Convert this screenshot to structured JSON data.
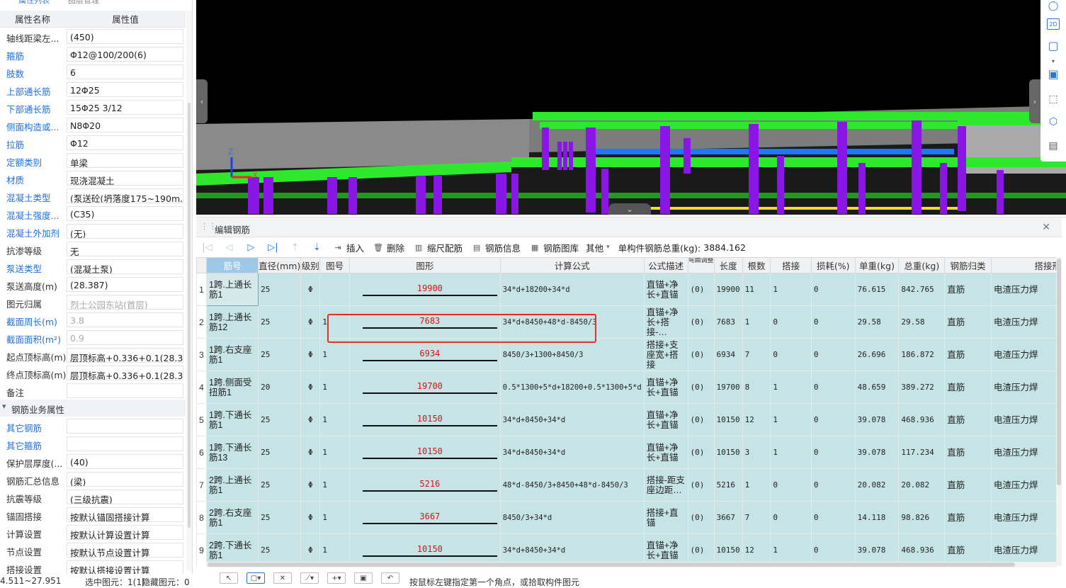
{
  "left_panel": {
    "tabs": [
      "属性列表",
      "图层管理"
    ],
    "header": {
      "name": "属性名称",
      "value": "属性值"
    },
    "rows": [
      {
        "name": "轴线距梁左...",
        "value": "(450)",
        "link": false
      },
      {
        "name": "箍筋",
        "value": "Φ12@100/200(6)",
        "link": true
      },
      {
        "name": "肢数",
        "value": "6",
        "link": true
      },
      {
        "name": "上部通长筋",
        "value": "12Φ25",
        "link": true
      },
      {
        "name": "下部通长筋",
        "value": "15Φ25 3/12",
        "link": true
      },
      {
        "name": "侧面构造或...",
        "value": "N8Φ20",
        "link": true
      },
      {
        "name": "拉筋",
        "value": "Φ12",
        "link": true
      },
      {
        "name": "定额类别",
        "value": "单梁",
        "link": true
      },
      {
        "name": "材质",
        "value": "现浇混凝土",
        "link": true
      },
      {
        "name": "混凝土类型",
        "value": "(泵送砼(坍落度175~190m...",
        "link": true
      },
      {
        "name": "混凝土强度...",
        "value": "(C35)",
        "link": true
      },
      {
        "name": "混凝土外加剂",
        "value": "(无)",
        "link": true
      },
      {
        "name": "抗渗等级",
        "value": "无",
        "link": false
      },
      {
        "name": "泵送类型",
        "value": "(混凝土泵)",
        "link": true
      },
      {
        "name": "泵送高度(m)",
        "value": "(28.387)",
        "link": false
      },
      {
        "name": "图元归属",
        "value": "烈士公园东站(首层)",
        "link": false,
        "gray": true
      },
      {
        "name": "截面周长(m)",
        "value": "3.8",
        "link": true,
        "gray": true
      },
      {
        "name": "截面面积(m²)",
        "value": "0.9",
        "link": true,
        "gray": true
      },
      {
        "name": "起点顶标高(m)",
        "value": "层顶标高+0.336+0.1(28.3...",
        "link": false
      },
      {
        "name": "终点顶标高(m)",
        "value": "层顶标高+0.336+0.1(28.3...",
        "link": false
      },
      {
        "name": "备注",
        "value": "",
        "link": false
      }
    ],
    "group": "钢筋业务属性",
    "rows2": [
      {
        "name": "其它钢筋",
        "value": "",
        "link": true
      },
      {
        "name": "其它箍筋",
        "value": "",
        "link": true
      },
      {
        "name": "保护层厚度(...",
        "value": "(40)",
        "link": false
      },
      {
        "name": "钢筋汇总信息",
        "value": "(梁)",
        "link": false
      },
      {
        "name": "抗震等级",
        "value": "(三级抗震)",
        "link": false
      },
      {
        "name": "锚固搭接",
        "value": "按默认锚固搭接计算",
        "link": false
      },
      {
        "name": "计算设置",
        "value": "按默认计算设置计算",
        "link": false
      },
      {
        "name": "节点设置",
        "value": "按默认节点设置计算",
        "link": false
      },
      {
        "name": "搭接设置",
        "value": "按默认搭接设置计算",
        "link": false
      }
    ]
  },
  "viewport": {
    "axis_z": "Z",
    "axis_x": "X",
    "tools": [
      "sphere-icon",
      "2d-view-icon",
      "cube-icon",
      "chevron-down-icon",
      "solid-cube-icon",
      "select-box-icon",
      "view-cube-icon",
      "report-icon"
    ],
    "tool_2d_label": "2D"
  },
  "panel": {
    "title": "编辑钢筋",
    "toolbar": {
      "insert": "插入",
      "delete": "删除",
      "scale": "缩尺配筋",
      "info": "钢筋信息",
      "library": "钢筋图库",
      "other": "其他",
      "weight_label": "单构件钢筋总重(kg):",
      "weight_value": "3884.162"
    },
    "columns": [
      "筋号",
      "直径(mm)",
      "级别",
      "图号",
      "图形",
      "计算公式",
      "公式描述",
      "弯曲调整",
      "长度",
      "根数",
      "搭接",
      "损耗(%)",
      "单重(kg)",
      "总重(kg)",
      "钢筋归类",
      "搭接形"
    ],
    "rows": [
      {
        "n": "1",
        "name": "1跨.上通长筋1",
        "dia": "25",
        "grade": "Φ",
        "fig": "",
        "shape": "19900",
        "formula": "34*d+18200+34*d",
        "desc": "直锚+净长+直锚",
        "bend": "(0)",
        "len": "19900",
        "count": "11",
        "lap": "1",
        "loss": "0",
        "unit": "76.615",
        "total": "842.765",
        "cat": "直筋",
        "laptype": "电渣压力焊"
      },
      {
        "n": "2",
        "name": "1跨.上通长筋12",
        "dia": "25",
        "grade": "Φ",
        "fig": "1",
        "shape": "7683",
        "formula": "34*d+8450+48*d-8450/3",
        "desc": "直锚+净长+搭接-…",
        "bend": "(0)",
        "len": "7683",
        "count": "1",
        "lap": "0",
        "loss": "0",
        "unit": "29.58",
        "total": "29.58",
        "cat": "直筋",
        "laptype": "电渣压力焊"
      },
      {
        "n": "3",
        "name": "1跨.右支座筋1",
        "dia": "25",
        "grade": "Φ",
        "fig": "1",
        "shape": "6934",
        "formula": "8450/3+1300+8450/3",
        "desc": "搭接+支座宽+搭接",
        "bend": "(0)",
        "len": "6934",
        "count": "7",
        "lap": "0",
        "loss": "0",
        "unit": "26.696",
        "total": "186.872",
        "cat": "直筋",
        "laptype": "电渣压力焊"
      },
      {
        "n": "4",
        "name": "1跨.侧面受扭筋1",
        "dia": "20",
        "grade": "Φ",
        "fig": "1",
        "shape": "19700",
        "formula": "0.5*1300+5*d+18200+0.5*1300+5*d",
        "desc": "直锚+净长+直锚",
        "bend": "(0)",
        "len": "19700",
        "count": "8",
        "lap": "1",
        "loss": "0",
        "unit": "48.659",
        "total": "389.272",
        "cat": "直筋",
        "laptype": "电渣压力焊"
      },
      {
        "n": "5",
        "name": "1跨.下通长筋1",
        "dia": "25",
        "grade": "Φ",
        "fig": "1",
        "shape": "10150",
        "formula": "34*d+8450+34*d",
        "desc": "直锚+净长+直锚",
        "bend": "(0)",
        "len": "10150",
        "count": "12",
        "lap": "1",
        "loss": "0",
        "unit": "39.078",
        "total": "468.936",
        "cat": "直筋",
        "laptype": "电渣压力焊"
      },
      {
        "n": "6",
        "name": "1跨.下通长筋13",
        "dia": "25",
        "grade": "Φ",
        "fig": "1",
        "shape": "10150",
        "formula": "34*d+8450+34*d",
        "desc": "直锚+净长+直锚",
        "bend": "(0)",
        "len": "10150",
        "count": "3",
        "lap": "1",
        "loss": "0",
        "unit": "39.078",
        "total": "117.234",
        "cat": "直筋",
        "laptype": "电渣压力焊"
      },
      {
        "n": "7",
        "name": "2跨.上通长筋1",
        "dia": "25",
        "grade": "Φ",
        "fig": "1",
        "shape": "5216",
        "formula": "48*d-8450/3+8450+48*d-8450/3",
        "desc": "搭接-距支座边距…",
        "bend": "(0)",
        "len": "5216",
        "count": "1",
        "lap": "0",
        "loss": "0",
        "unit": "20.082",
        "total": "20.082",
        "cat": "直筋",
        "laptype": "电渣压力焊"
      },
      {
        "n": "8",
        "name": "2跨.右支座筋1",
        "dia": "25",
        "grade": "Φ",
        "fig": "1",
        "shape": "3667",
        "formula": "8450/3+34*d",
        "desc": "搭接+直锚",
        "bend": "(0)",
        "len": "3667",
        "count": "7",
        "lap": "0",
        "loss": "0",
        "unit": "14.118",
        "total": "98.826",
        "cat": "直筋",
        "laptype": "电渣压力焊"
      },
      {
        "n": "9",
        "name": "2跨.下通长筋1",
        "dia": "25",
        "grade": "Φ",
        "fig": "1",
        "shape": "10150",
        "formula": "34*d+8450+34*d",
        "desc": "直锚+净长+直锚",
        "bend": "(0)",
        "len": "10150",
        "count": "12",
        "lap": "1",
        "loss": "0",
        "unit": "39.078",
        "total": "468.936",
        "cat": "直筋",
        "laptype": "电渣压力焊"
      }
    ]
  },
  "status": {
    "coords": "4.511~27.951",
    "selected": "选中图元：1(1)",
    "hidden": "隐藏图元：0",
    "hint": "按鼠标左键指定第一个角点，或拾取构件图元"
  },
  "colors": {
    "beam_green": "#2ee82e",
    "column_purple": "#8a16e6",
    "grid_row_bg": "#c6e3e6",
    "highlight_red": "#e0302a",
    "link_blue": "#1f6fe0"
  }
}
